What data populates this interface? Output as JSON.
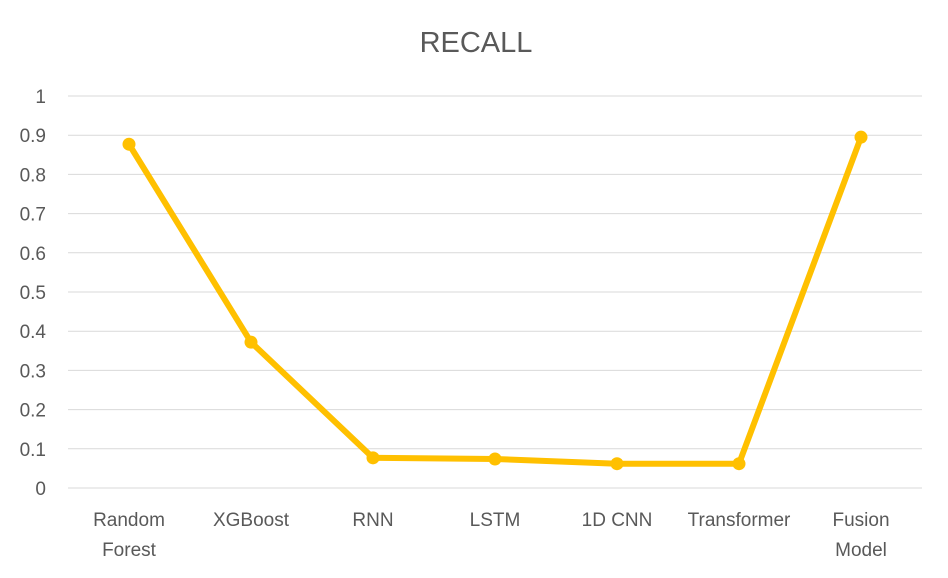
{
  "chart_data": {
    "type": "line",
    "title": "RECALL",
    "xlabel": "",
    "ylabel": "",
    "categories": [
      "Random Forest",
      "XGBoost",
      "RNN",
      "LSTM",
      "1D CNN",
      "Transformer",
      "Fusion Model"
    ],
    "series": [
      {
        "values": [
          0.877,
          0.372,
          0.077,
          0.074,
          0.062,
          0.062,
          0.895
        ],
        "color": "#FFC000"
      }
    ],
    "ylim": [
      0,
      1
    ],
    "yticks": [
      "0",
      "0.1",
      "0.2",
      "0.3",
      "0.4",
      "0.5",
      "0.6",
      "0.7",
      "0.8",
      "0.9",
      "1"
    ],
    "grid": true,
    "legend": "none"
  }
}
